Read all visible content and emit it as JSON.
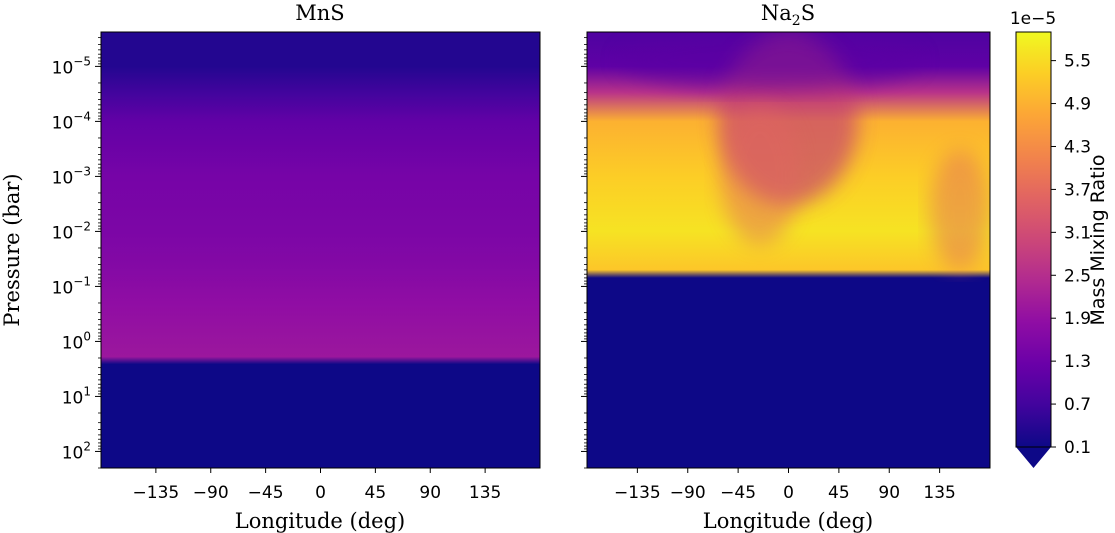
{
  "chart_data": [
    {
      "type": "heatmap",
      "title": "MnS",
      "xlabel": "Longitude (deg)",
      "ylabel": "Pressure (bar)",
      "xlim": [
        -180,
        180
      ],
      "ylim_bar": [
        2.37e-06,
        200
      ],
      "yscale": "log",
      "y_inverted": true,
      "xticks": [
        -135,
        -90,
        -45,
        0,
        45,
        90,
        135
      ],
      "xtick_labels": [
        "−135",
        "−90",
        "−45",
        "0",
        "45",
        "90",
        "135"
      ],
      "yticks": [
        {
          "base": "10",
          "exp": "−5",
          "value": 1e-05
        },
        {
          "base": "10",
          "exp": "−4",
          "value": 0.0001
        },
        {
          "base": "10",
          "exp": "−3",
          "value": 0.001
        },
        {
          "base": "10",
          "exp": "−2",
          "value": 0.01
        },
        {
          "base": "10",
          "exp": "−1",
          "value": 0.1
        },
        {
          "base": "10",
          "exp": "0",
          "value": 1
        },
        {
          "base": "10",
          "exp": "1",
          "value": 10
        },
        {
          "base": "10",
          "exp": "2",
          "value": 100
        }
      ],
      "pressure_profile": [
        {
          "pressure": 3e-06,
          "value": 0.35
        },
        {
          "pressure": 1e-05,
          "value": 0.35
        },
        {
          "pressure": 3e-05,
          "value": 0.7
        },
        {
          "pressure": 0.0001,
          "value": 1.15
        },
        {
          "pressure": 0.001,
          "value": 1.45
        },
        {
          "pressure": 0.01,
          "value": 1.55
        },
        {
          "pressure": 0.04,
          "value": 1.65
        },
        {
          "pressure": 0.2,
          "value": 1.85
        },
        {
          "pressure": 1.9,
          "value": 2.05
        },
        {
          "pressure": 2.6,
          "value": 0.1
        },
        {
          "pressure": 200,
          "value": 0.1
        }
      ]
    },
    {
      "type": "heatmap",
      "title_base": "Na",
      "title_sub": "2",
      "title_tail": "S",
      "xlabel": "Longitude (deg)",
      "xlim": [
        -180,
        180
      ],
      "ylim_bar": [
        2.37e-06,
        200
      ],
      "yscale": "log",
      "y_inverted": true,
      "xticks": [
        -135,
        -90,
        -45,
        0,
        45,
        90,
        135
      ],
      "xtick_labels": [
        "−135",
        "−90",
        "−45",
        "0",
        "45",
        "90",
        "135"
      ],
      "pressure_profile": [
        {
          "pressure": 3e-06,
          "value": 0.9
        },
        {
          "pressure": 1e-05,
          "value": 1.1
        },
        {
          "pressure": 3e-05,
          "value": 2.6
        },
        {
          "pressure": 0.0001,
          "value": 4.9
        },
        {
          "pressure": 0.001,
          "value": 5.3
        },
        {
          "pressure": 0.01,
          "value": 5.6
        },
        {
          "pressure": 0.05,
          "value": 5.2
        },
        {
          "pressure": 0.07,
          "value": 0.1
        },
        {
          "pressure": 200,
          "value": 0.1
        }
      ],
      "notes_upper_region_lower_values_near_longitude": [
        -45,
        45
      ]
    }
  ],
  "colorbar": {
    "label": "Mass Mixing Ratio",
    "scale_label": "1e−5",
    "colormap": "plasma",
    "ticks": [
      "0.1",
      "0.7",
      "1.3",
      "1.9",
      "2.5",
      "3.1",
      "3.7",
      "4.3",
      "4.9",
      "5.5"
    ],
    "tick_values": [
      0.1,
      0.7,
      1.3,
      1.9,
      2.5,
      3.1,
      3.7,
      4.3,
      4.9,
      5.5
    ],
    "range": [
      0.1,
      5.9
    ],
    "extend": "min"
  },
  "colors": {
    "plasma_low": "#0d0887",
    "plasma_mid": "#9c179e",
    "plasma_high": "#f0f921"
  }
}
